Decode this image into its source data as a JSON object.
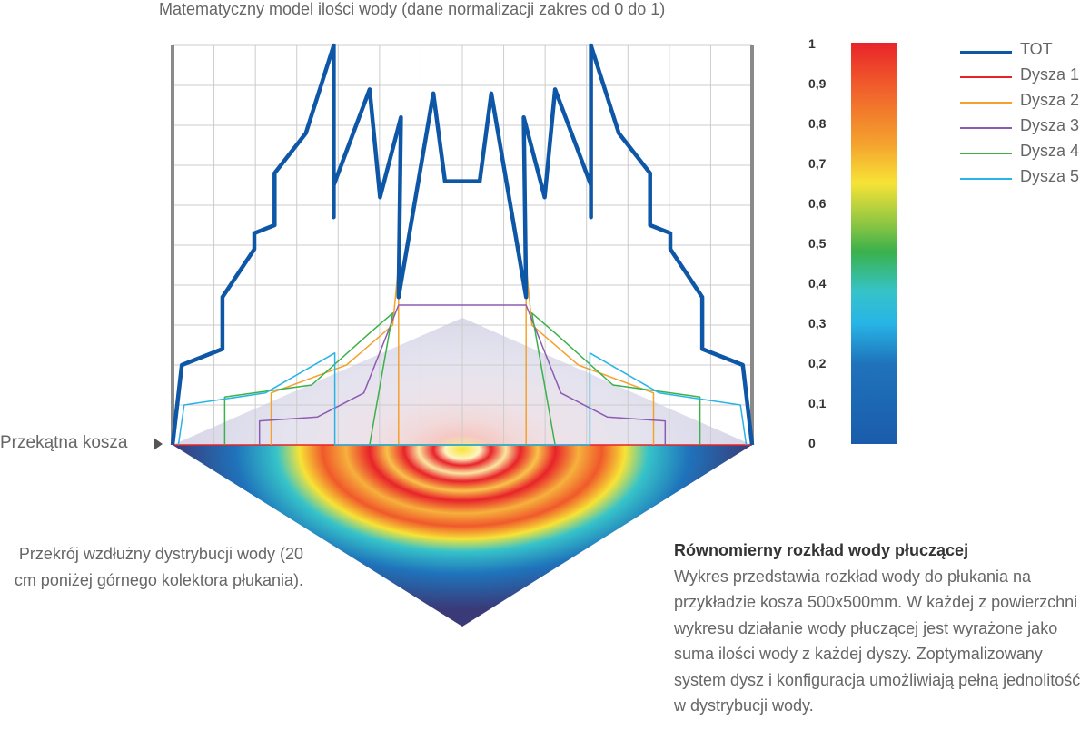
{
  "title": "Matematyczny model ilości wody (dane normalizacji zakres od 0 do 1)",
  "colorbar": {
    "ticks": [
      "1",
      "0,9",
      "0,8",
      "0,7",
      "0,6",
      "0,5",
      "0,4",
      "0,3",
      "0,2",
      "0,1",
      "0"
    ],
    "colors": [
      "#e8232a",
      "#f0592b",
      "#f4a12e",
      "#f7e336",
      "#8ec642",
      "#3ab14a",
      "#36c3c9",
      "#27b4e6",
      "#1f73bb",
      "#1a5cab"
    ]
  },
  "diagonal_label": "Przekątna kosza",
  "section_caption": "Przekrój wzdłużny dystrybucji wody (20 cm poniżej górnego kolektora płukania).",
  "description": {
    "title": "Równomierny rozkład wody płuczącej",
    "body": "Wykres przedstawia rozkład wody do płukania na przykładzie kosza 500x500mm. W każdej z powierzchni wykresu działanie wody płuczącej jest wyrażone jako suma ilości wody z każdej dyszy. Zoptymalizowany system dysz i konfiguracja umożliwiają pełną jednolitość w dystrybucji wody."
  },
  "chart_data": {
    "type": "line",
    "title": "Matematyczny model ilości wody (dane normalizacji zakres od 0 do 1)",
    "ylim": [
      0,
      1
    ],
    "xlim": [
      0,
      1
    ],
    "grid": true,
    "legend_position": "top-right",
    "series": [
      {
        "name": "TOT",
        "color": "#0e56a6",
        "points": [
          [
            0,
            0
          ],
          [
            0.016,
            0.2
          ],
          [
            0.086,
            0.24
          ],
          [
            0.086,
            0.37
          ],
          [
            0.141,
            0.49
          ],
          [
            0.141,
            0.53
          ],
          [
            0.176,
            0.55
          ],
          [
            0.176,
            0.68
          ],
          [
            0.23,
            0.78
          ],
          [
            0.278,
            1.0
          ],
          [
            0.278,
            0.57
          ],
          [
            0.278,
            0.65
          ],
          [
            0.34,
            0.89
          ],
          [
            0.358,
            0.62
          ],
          [
            0.394,
            0.82
          ],
          [
            0.39,
            0.37
          ],
          [
            0.39,
            0.37
          ],
          [
            0.45,
            0.88
          ],
          [
            0.47,
            0.66
          ],
          [
            0.53,
            0.66
          ],
          [
            0.55,
            0.88
          ],
          [
            0.61,
            0.37
          ],
          [
            0.606,
            0.82
          ],
          [
            0.642,
            0.62
          ],
          [
            0.66,
            0.89
          ],
          [
            0.722,
            0.65
          ],
          [
            0.722,
            0.57
          ],
          [
            0.722,
            1.0
          ],
          [
            0.77,
            0.78
          ],
          [
            0.824,
            0.68
          ],
          [
            0.824,
            0.55
          ],
          [
            0.859,
            0.53
          ],
          [
            0.859,
            0.49
          ],
          [
            0.914,
            0.37
          ],
          [
            0.914,
            0.24
          ],
          [
            0.984,
            0.2
          ],
          [
            1,
            0
          ]
        ]
      },
      {
        "name": "Dysza 1",
        "color": "#e8232a",
        "points": [
          [
            0,
            0
          ],
          [
            1,
            0
          ]
        ]
      },
      {
        "name": "Dysza 2",
        "color": "#f4a12e",
        "points": [
          [
            0.17,
            0.0
          ],
          [
            0.17,
            0.13
          ],
          [
            0.3,
            0.2
          ],
          [
            0.38,
            0.3
          ],
          [
            0.39,
            0.45
          ],
          [
            0.39,
            0.0
          ],
          [
            0.61,
            0.0
          ],
          [
            0.61,
            0.45
          ],
          [
            0.62,
            0.3
          ],
          [
            0.7,
            0.2
          ],
          [
            0.83,
            0.13
          ],
          [
            0.83,
            0.0
          ]
        ]
      },
      {
        "name": "Dysza 3",
        "color": "#8e5bb3",
        "points": [
          [
            0.15,
            0.0
          ],
          [
            0.15,
            0.06
          ],
          [
            0.25,
            0.07
          ],
          [
            0.33,
            0.13
          ],
          [
            0.39,
            0.35
          ],
          [
            0.61,
            0.35
          ],
          [
            0.67,
            0.13
          ],
          [
            0.75,
            0.07
          ],
          [
            0.85,
            0.06
          ],
          [
            0.85,
            0.0
          ]
        ]
      },
      {
        "name": "Dysza 4",
        "color": "#3ab14a",
        "points": [
          [
            0.09,
            0.0
          ],
          [
            0.09,
            0.12
          ],
          [
            0.24,
            0.15
          ],
          [
            0.34,
            0.28
          ],
          [
            0.38,
            0.33
          ],
          [
            0.34,
            0.0
          ],
          [
            0.66,
            0.0
          ],
          [
            0.62,
            0.33
          ],
          [
            0.66,
            0.28
          ],
          [
            0.76,
            0.15
          ],
          [
            0.91,
            0.12
          ],
          [
            0.91,
            0.0
          ]
        ]
      },
      {
        "name": "Dysza 5",
        "color": "#27b4e6",
        "points": [
          [
            0.01,
            0.0
          ],
          [
            0.02,
            0.1
          ],
          [
            0.16,
            0.13
          ],
          [
            0.28,
            0.23
          ],
          [
            0.28,
            0.0
          ],
          [
            0.72,
            0.0
          ],
          [
            0.72,
            0.23
          ],
          [
            0.84,
            0.13
          ],
          [
            0.98,
            0.1
          ],
          [
            0.99,
            0.0
          ]
        ]
      }
    ]
  }
}
